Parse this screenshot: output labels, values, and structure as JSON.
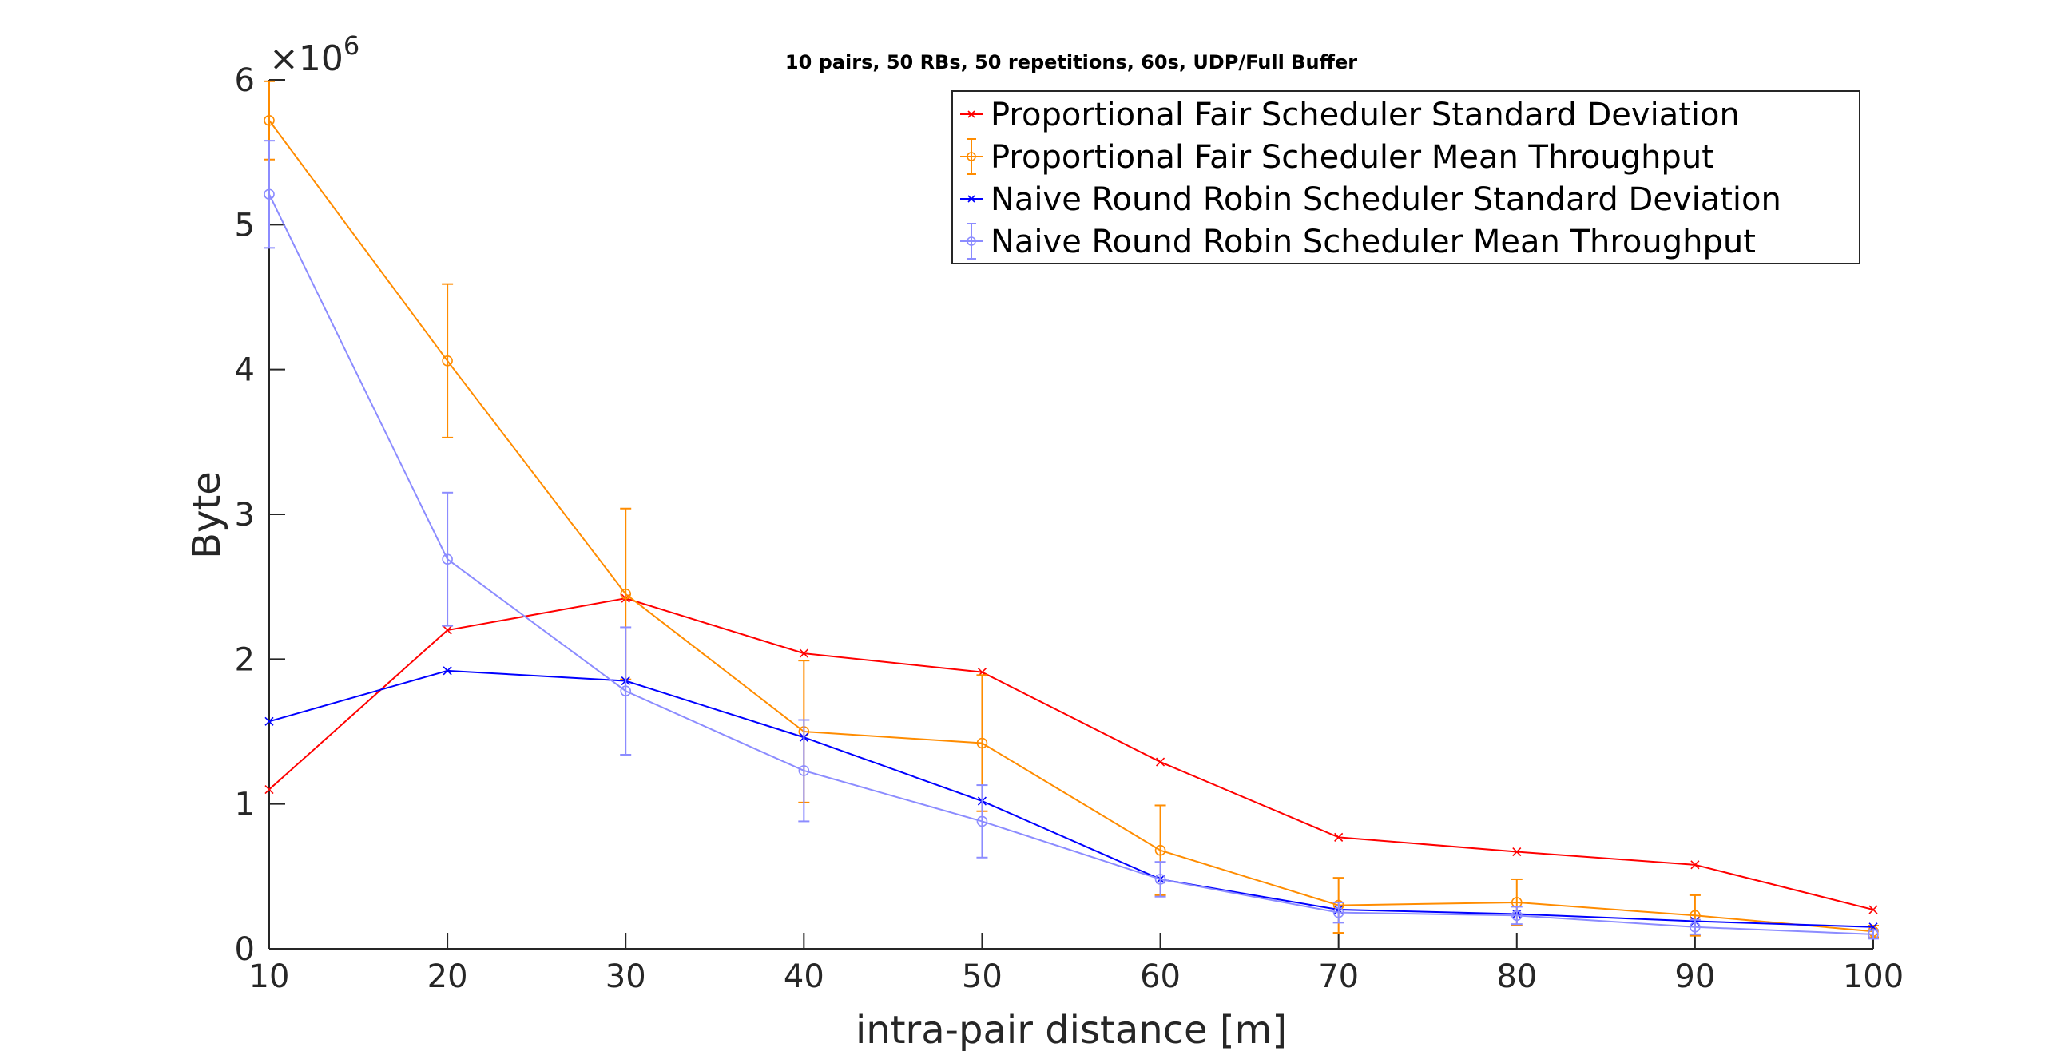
{
  "chart_data": {
    "type": "line",
    "title": "10 pairs, 50 RBs, 50 repetitions, 60s, UDP/Full Buffer",
    "xlabel": "intra-pair distance [m]",
    "ylabel": "Byte",
    "y_exponent_label": "×10",
    "y_exponent_power": "6",
    "y_scale_factor": 1000000,
    "x": [
      10,
      20,
      30,
      40,
      50,
      60,
      70,
      80,
      90,
      100
    ],
    "xlim": [
      10,
      100
    ],
    "ylim": [
      0,
      6000000
    ],
    "x_ticks": [
      10,
      20,
      30,
      40,
      50,
      60,
      70,
      80,
      90,
      100
    ],
    "x_tick_labels": [
      "10",
      "20",
      "30",
      "40",
      "50",
      "60",
      "70",
      "80",
      "90",
      "100"
    ],
    "y_ticks": [
      0,
      1000000,
      2000000,
      3000000,
      4000000,
      5000000,
      6000000
    ],
    "y_tick_labels": [
      "0",
      "1",
      "2",
      "3",
      "4",
      "5",
      "6"
    ],
    "grid": false,
    "legend_position": "top-right",
    "series": [
      {
        "name": "Proportional Fair Scheduler Standard Deviation",
        "color": "#ff0000",
        "marker": "x",
        "values": [
          1100000,
          2200000,
          2420000,
          2040000,
          1910000,
          1290000,
          770000,
          670000,
          580000,
          270000
        ]
      },
      {
        "name": "Proportional Fair Scheduler Mean Throughput",
        "color": "#ff8c00",
        "marker": "o",
        "values": [
          5720000,
          4060000,
          2450000,
          1500000,
          1420000,
          680000,
          300000,
          320000,
          230000,
          120000
        ],
        "errors": [
          270000,
          530000,
          590000,
          490000,
          470000,
          310000,
          190000,
          160000,
          140000,
          40000
        ]
      },
      {
        "name": "Naive Round Robin Scheduler Standard Deviation",
        "color": "#0000ff",
        "marker": "x",
        "values": [
          1570000,
          1920000,
          1850000,
          1460000,
          1020000,
          480000,
          270000,
          240000,
          190000,
          150000
        ]
      },
      {
        "name": "Naive Round Robin Scheduler Mean Throughput",
        "color": "#8c8cff",
        "marker": "o",
        "values": [
          5210000,
          2690000,
          1780000,
          1230000,
          880000,
          480000,
          250000,
          230000,
          150000,
          100000
        ],
        "errors": [
          370000,
          460000,
          440000,
          350000,
          250000,
          120000,
          70000,
          60000,
          50000,
          30000
        ]
      }
    ]
  }
}
